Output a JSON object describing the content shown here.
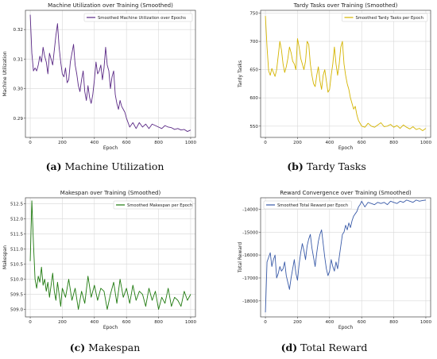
{
  "chart_data": [
    {
      "type": "line",
      "title": "Machine Utilization over Training (Smoothed)",
      "xlabel": "Epoch",
      "ylabel": "Machine Utilization",
      "xlim": [
        -30,
        1030
      ],
      "ylim": [
        0.2835,
        0.3265
      ],
      "xticks": [
        0,
        200,
        400,
        600,
        800,
        1000
      ],
      "yticks": [
        0.29,
        0.3,
        0.31,
        0.32
      ],
      "ytick_labels": [
        "0.29",
        "0.30",
        "0.31",
        "0.32"
      ],
      "grid": true,
      "legend": "top-right",
      "caption_letter": "(a)",
      "caption_text": "Machine Utilization",
      "color": "#5b2a86",
      "series": [
        {
          "name": "Smoothed Machine Utilization over Epochs",
          "x": [
            0,
            10,
            20,
            30,
            40,
            50,
            60,
            70,
            80,
            90,
            100,
            110,
            120,
            130,
            140,
            150,
            160,
            170,
            180,
            190,
            200,
            210,
            220,
            230,
            240,
            250,
            260,
            270,
            280,
            290,
            300,
            310,
            320,
            330,
            340,
            350,
            360,
            370,
            380,
            390,
            400,
            410,
            420,
            430,
            440,
            450,
            460,
            470,
            480,
            490,
            500,
            510,
            520,
            530,
            540,
            550,
            560,
            570,
            580,
            590,
            600,
            620,
            640,
            660,
            680,
            700,
            720,
            740,
            760,
            780,
            800,
            820,
            840,
            860,
            880,
            900,
            920,
            940,
            960,
            980,
            1000
          ],
          "y": [
            0.325,
            0.312,
            0.306,
            0.307,
            0.306,
            0.308,
            0.311,
            0.309,
            0.314,
            0.311,
            0.309,
            0.305,
            0.312,
            0.31,
            0.308,
            0.313,
            0.318,
            0.322,
            0.314,
            0.309,
            0.305,
            0.304,
            0.307,
            0.302,
            0.303,
            0.309,
            0.312,
            0.315,
            0.308,
            0.305,
            0.301,
            0.299,
            0.303,
            0.306,
            0.299,
            0.296,
            0.301,
            0.297,
            0.295,
            0.298,
            0.303,
            0.309,
            0.305,
            0.306,
            0.308,
            0.303,
            0.307,
            0.314,
            0.308,
            0.306,
            0.3,
            0.304,
            0.306,
            0.298,
            0.295,
            0.293,
            0.296,
            0.294,
            0.293,
            0.292,
            0.29,
            0.287,
            0.2885,
            0.2865,
            0.2885,
            0.287,
            0.288,
            0.2865,
            0.288,
            0.2875,
            0.287,
            0.2865,
            0.2875,
            0.287,
            0.2868,
            0.2862,
            0.2865,
            0.286,
            0.2862,
            0.2855,
            0.286
          ]
        }
      ]
    },
    {
      "type": "line",
      "title": "Tardy Tasks over Training (Smoothed)",
      "xlabel": "Epoch",
      "ylabel": "Tardy Tasks",
      "xlim": [
        -30,
        1030
      ],
      "ylim": [
        530,
        755
      ],
      "xticks": [
        0,
        200,
        400,
        600,
        800,
        1000
      ],
      "yticks": [
        550,
        600,
        650,
        700,
        750
      ],
      "ytick_labels": [
        "550",
        "600",
        "650",
        "700",
        "750"
      ],
      "grid": true,
      "legend": "top-right",
      "caption_letter": "(b)",
      "caption_text": "Tardy Tasks",
      "color": "#d4b400",
      "series": [
        {
          "name": "Smoothed Tardy Tasks per Epoch",
          "x": [
            0,
            10,
            20,
            30,
            40,
            50,
            60,
            70,
            80,
            90,
            100,
            110,
            120,
            130,
            140,
            150,
            160,
            170,
            180,
            190,
            200,
            210,
            220,
            230,
            240,
            250,
            260,
            270,
            280,
            290,
            300,
            310,
            320,
            330,
            340,
            350,
            360,
            370,
            380,
            390,
            400,
            410,
            420,
            430,
            440,
            450,
            460,
            470,
            480,
            490,
            500,
            510,
            520,
            530,
            540,
            550,
            560,
            570,
            580,
            590,
            600,
            620,
            640,
            660,
            680,
            700,
            720,
            740,
            760,
            780,
            800,
            820,
            840,
            860,
            880,
            900,
            920,
            940,
            960,
            980,
            1000
          ],
          "y": [
            745,
            690,
            648,
            640,
            652,
            645,
            638,
            650,
            675,
            700,
            685,
            660,
            645,
            655,
            670,
            690,
            680,
            665,
            660,
            650,
            705,
            690,
            670,
            660,
            650,
            665,
            700,
            695,
            660,
            640,
            625,
            620,
            640,
            655,
            630,
            615,
            640,
            650,
            630,
            610,
            615,
            640,
            660,
            690,
            660,
            640,
            660,
            690,
            700,
            660,
            640,
            625,
            615,
            600,
            590,
            580,
            585,
            570,
            560,
            555,
            550,
            548,
            555,
            550,
            548,
            552,
            556,
            549,
            550,
            553,
            548,
            551,
            546,
            552,
            548,
            545,
            549,
            544,
            546,
            542,
            546
          ]
        }
      ]
    },
    {
      "type": "line",
      "title": "Makespan over Training (Smoothed)",
      "xlabel": "Epoch",
      "ylabel": "Makespan",
      "xlim": [
        -30,
        1030
      ],
      "ylim": [
        508.75,
        512.7
      ],
      "xticks": [
        0,
        200,
        400,
        600,
        800,
        1000
      ],
      "yticks": [
        509.0,
        509.5,
        510.0,
        510.5,
        511.0,
        511.5,
        512.0,
        512.5
      ],
      "ytick_labels": [
        "509.0",
        "509.5",
        "510.0",
        "510.5",
        "511.0",
        "511.5",
        "512.0",
        "512.5"
      ],
      "grid": true,
      "legend": "top-right",
      "caption_letter": "(c)",
      "caption_text": "Makespan",
      "color": "#1f7a0f",
      "series": [
        {
          "name": "Smoothed Makespan per Epoch",
          "x": [
            0,
            10,
            20,
            30,
            40,
            50,
            60,
            70,
            80,
            90,
            100,
            110,
            120,
            130,
            140,
            150,
            160,
            170,
            180,
            190,
            200,
            220,
            240,
            260,
            280,
            300,
            320,
            340,
            360,
            380,
            400,
            420,
            440,
            460,
            480,
            500,
            520,
            540,
            560,
            580,
            600,
            620,
            640,
            660,
            680,
            700,
            720,
            740,
            760,
            780,
            800,
            820,
            840,
            860,
            880,
            900,
            920,
            940,
            960,
            980,
            1000
          ],
          "y": [
            510.6,
            512.6,
            511.2,
            510.0,
            509.7,
            510.1,
            509.9,
            510.4,
            509.8,
            510.0,
            509.6,
            509.9,
            509.4,
            509.8,
            510.2,
            509.6,
            509.3,
            509.9,
            509.5,
            509.1,
            509.7,
            509.4,
            510.0,
            509.3,
            509.7,
            509.0,
            509.6,
            509.2,
            510.1,
            509.4,
            509.8,
            509.3,
            509.7,
            509.6,
            509.0,
            509.5,
            509.9,
            509.2,
            510.0,
            509.4,
            509.7,
            509.2,
            509.8,
            509.3,
            509.6,
            509.5,
            509.1,
            509.7,
            509.3,
            509.6,
            509.0,
            509.4,
            509.2,
            509.7,
            509.1,
            509.4,
            509.3,
            509.1,
            509.6,
            509.3,
            509.5
          ]
        }
      ]
    },
    {
      "type": "line",
      "title": "Reward Convergence over Training (Smoothed)",
      "xlabel": "Epoch",
      "ylabel": "Total Reward",
      "xlim": [
        -30,
        1030
      ],
      "ylim": [
        -18700,
        -13500
      ],
      "xticks": [
        0,
        200,
        400,
        600,
        800,
        1000
      ],
      "yticks": [
        -18000,
        -17000,
        -16000,
        -15000,
        -14000
      ],
      "ytick_labels": [
        "-18000",
        "-17000",
        "-16000",
        "-15000",
        "-14000"
      ],
      "grid": true,
      "legend": "top-left",
      "caption_letter": "(d)",
      "caption_text": "Total Reward",
      "color": "#3a5ba8",
      "series": [
        {
          "name": "Smoothed Total Reward per Epoch",
          "x": [
            0,
            10,
            20,
            30,
            40,
            50,
            60,
            70,
            80,
            90,
            100,
            110,
            120,
            130,
            140,
            150,
            160,
            170,
            180,
            190,
            200,
            210,
            220,
            230,
            240,
            250,
            260,
            270,
            280,
            290,
            300,
            310,
            320,
            330,
            340,
            350,
            360,
            370,
            380,
            390,
            400,
            410,
            420,
            430,
            440,
            450,
            460,
            470,
            480,
            490,
            500,
            510,
            520,
            530,
            540,
            550,
            560,
            570,
            580,
            590,
            600,
            620,
            640,
            660,
            680,
            700,
            720,
            740,
            760,
            780,
            800,
            820,
            840,
            860,
            880,
            900,
            920,
            940,
            960,
            980,
            1000
          ],
          "y": [
            -18500,
            -16300,
            -16100,
            -15900,
            -16500,
            -16200,
            -16000,
            -17000,
            -16800,
            -16500,
            -16700,
            -16600,
            -16300,
            -16900,
            -17200,
            -17500,
            -17000,
            -16600,
            -16200,
            -16800,
            -17100,
            -16400,
            -15900,
            -15500,
            -15800,
            -16200,
            -15600,
            -15300,
            -15100,
            -15700,
            -16100,
            -16500,
            -15900,
            -15400,
            -15100,
            -14900,
            -15500,
            -16100,
            -16600,
            -16900,
            -16700,
            -16200,
            -16500,
            -16700,
            -16300,
            -16600,
            -16100,
            -15600,
            -15100,
            -15000,
            -14700,
            -14900,
            -14600,
            -14800,
            -14500,
            -14300,
            -14200,
            -14100,
            -13900,
            -13800,
            -13650,
            -13900,
            -13700,
            -13750,
            -13800,
            -13700,
            -13750,
            -13700,
            -13800,
            -13650,
            -13700,
            -13750,
            -13650,
            -13700,
            -13600,
            -13650,
            -13700,
            -13600,
            -13650,
            -13620,
            -13600
          ]
        }
      ]
    }
  ]
}
